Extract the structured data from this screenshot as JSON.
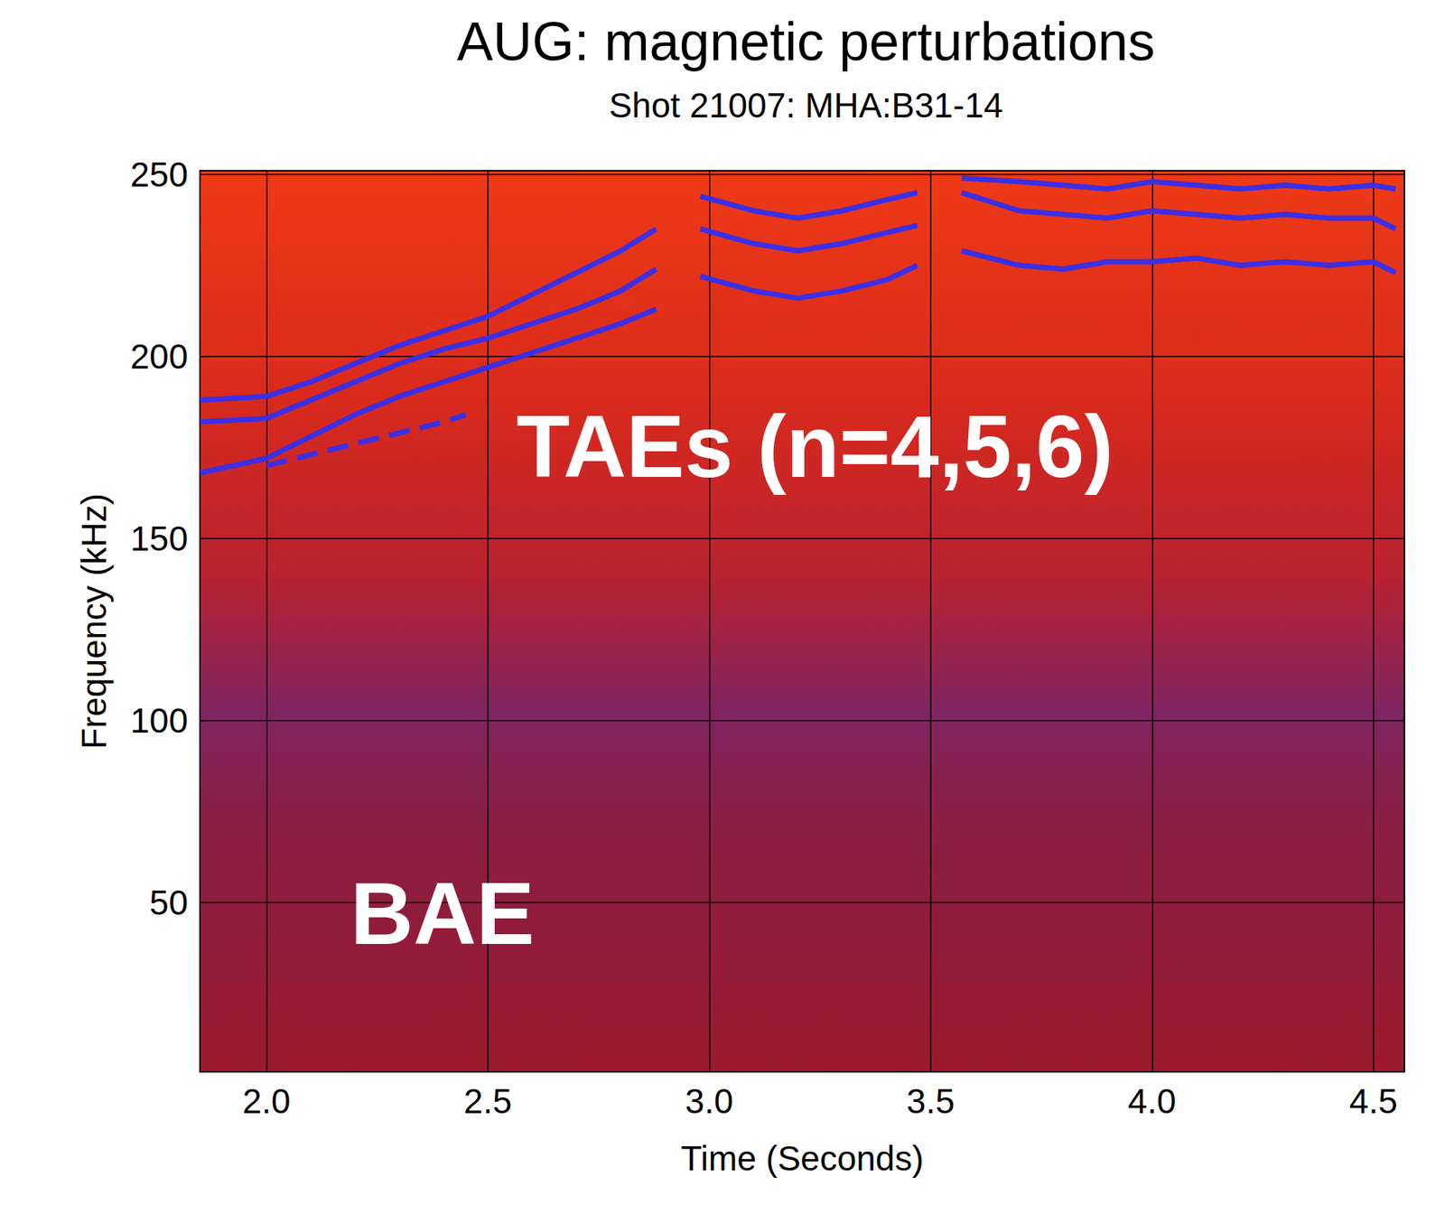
{
  "chart_data": {
    "type": "line",
    "title": "AUG: magnetic perturbations",
    "subtitle": "Shot 21007: MHA:B31-14",
    "x_label": "Time (Seconds)",
    "y_label": "Frequency (kHz)",
    "annotations": [
      "TAEs (n=4,5,6)",
      "BAE"
    ],
    "xlim": [
      1.85,
      4.57
    ],
    "xticks": [
      {
        "value": 2,
        "label": "2.0"
      },
      {
        "value": 2.5,
        "label": "2.5"
      },
      {
        "value": 3,
        "label": "3.0"
      },
      {
        "value": 3.5,
        "label": "3.5"
      },
      {
        "value": 4,
        "label": "4.0"
      },
      {
        "value": 4.5,
        "label": "4.5"
      }
    ],
    "ylim": [
      3.5,
      251
    ],
    "yticks": [
      50,
      100,
      150,
      200,
      250
    ],
    "grid": true,
    "series": [
      {
        "color": "#3b2fe6",
        "line_style": "solid",
        "x": [
          1.85,
          2.0,
          2.1,
          2.2,
          2.3,
          2.4,
          2.5,
          2.6,
          2.7,
          2.8,
          2.88,
          2.93,
          2.98,
          3.1,
          3.2,
          3.3,
          3.4,
          3.47,
          3.52,
          3.57,
          3.7,
          3.8,
          3.9,
          4.0,
          4.1,
          4.2,
          4.3,
          4.4,
          4.5,
          4.55
        ],
        "values": [
          188,
          189,
          193,
          198,
          203,
          207,
          211,
          217,
          223,
          229,
          235,
          null,
          244,
          240,
          238,
          240,
          243,
          245,
          null,
          249,
          248,
          247,
          246,
          248,
          247,
          246,
          247,
          246,
          247,
          246
        ]
      },
      {
        "color": "#3b2fe6",
        "line_style": "solid",
        "x": [
          1.85,
          2.0,
          2.1,
          2.2,
          2.3,
          2.4,
          2.5,
          2.6,
          2.7,
          2.8,
          2.88,
          2.93,
          2.98,
          3.1,
          3.2,
          3.3,
          3.4,
          3.47,
          3.52,
          3.57,
          3.7,
          3.8,
          3.9,
          4.0,
          4.1,
          4.2,
          4.3,
          4.4,
          4.5,
          4.55
        ],
        "values": [
          182,
          183,
          188,
          193,
          198,
          202,
          205,
          209,
          213,
          218,
          224,
          null,
          235,
          231,
          229,
          231,
          234,
          236,
          null,
          245,
          240,
          239,
          238,
          240,
          239,
          238,
          239,
          238,
          238,
          235
        ]
      },
      {
        "color": "#3b2fe6",
        "line_style": "solid",
        "x": [
          1.85,
          2.0,
          2.1,
          2.2,
          2.3,
          2.4,
          2.5,
          2.6,
          2.7,
          2.8,
          2.88,
          2.93,
          2.98,
          3.1,
          3.2,
          3.3,
          3.4,
          3.47,
          3.52,
          3.57,
          3.7,
          3.8,
          3.9,
          4.0,
          4.1,
          4.2,
          4.3,
          4.4,
          4.5,
          4.55
        ],
        "values": [
          168,
          172,
          178,
          184,
          189,
          193,
          197,
          201,
          205,
          209,
          213,
          null,
          222,
          218,
          216,
          218,
          221,
          225,
          null,
          229,
          225,
          224,
          226,
          226,
          227,
          225,
          226,
          225,
          226,
          223
        ]
      },
      {
        "color": "#3b2fe6",
        "line_style": "dashed",
        "x": [
          2.0,
          2.1,
          2.2,
          2.3,
          2.4,
          2.45
        ],
        "values": [
          170,
          173,
          176,
          179,
          182,
          184
        ]
      }
    ]
  }
}
